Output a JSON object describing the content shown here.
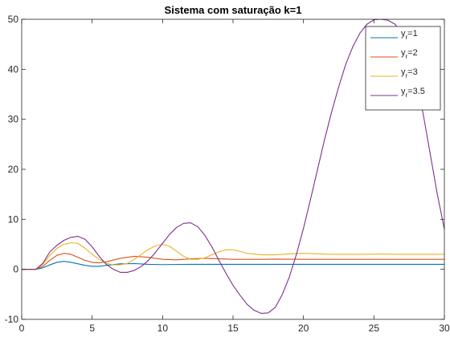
{
  "chart_data": {
    "type": "line",
    "title": "Sistema com saturação k=1",
    "xlabel": "",
    "ylabel": "",
    "xlim": [
      0,
      30
    ],
    "ylim": [
      -10,
      50
    ],
    "xticks": [
      0,
      5,
      10,
      15,
      20,
      25,
      30
    ],
    "yticks": [
      -10,
      0,
      10,
      20,
      30,
      40,
      50
    ],
    "grid": false,
    "legend_position": "top-right",
    "series": [
      {
        "name_main": "y",
        "name_sub": "r",
        "name_rest": "=1",
        "color": "#0072BD",
        "x": [
          0,
          1,
          1.5,
          2,
          2.5,
          3,
          3.5,
          4,
          4.5,
          5,
          5.5,
          6,
          7,
          8,
          9,
          10,
          12,
          15,
          20,
          25,
          30
        ],
        "y": [
          0,
          0,
          0.3,
          0.9,
          1.4,
          1.6,
          1.4,
          1.1,
          0.8,
          0.6,
          0.6,
          0.8,
          1.1,
          1.15,
          1.0,
          0.95,
          1.0,
          1.0,
          1.0,
          1.0,
          1.0
        ]
      },
      {
        "name_main": "y",
        "name_sub": "r",
        "name_rest": "=2",
        "color": "#D95319",
        "x": [
          0,
          1,
          1.5,
          2,
          2.5,
          3,
          3.5,
          4,
          4.5,
          5,
          5.5,
          6,
          7,
          8,
          9,
          10,
          11,
          12,
          13,
          14,
          15,
          16,
          17,
          18,
          20,
          25,
          30
        ],
        "y": [
          0,
          0,
          0.6,
          1.8,
          2.8,
          3.2,
          3.0,
          2.4,
          1.8,
          1.4,
          1.3,
          1.5,
          2.2,
          2.6,
          2.4,
          2.0,
          1.9,
          2.1,
          2.2,
          2.1,
          2.0,
          2.0,
          2.0,
          2.05,
          2.0,
          2.0,
          2.0
        ]
      },
      {
        "name_main": "y",
        "name_sub": "r",
        "name_rest": "=3",
        "color": "#EDB120",
        "x": [
          0,
          1,
          1.5,
          2,
          2.5,
          3,
          3.5,
          4,
          4.5,
          5,
          5.5,
          6,
          6.5,
          7,
          7.5,
          8,
          8.5,
          9,
          9.5,
          10,
          10.5,
          11,
          11.5,
          12,
          12.5,
          13,
          13.5,
          14,
          14.5,
          15,
          15.5,
          16,
          17,
          18,
          19,
          20,
          21,
          22,
          23,
          24,
          25,
          26,
          27,
          28,
          29,
          30
        ],
        "y": [
          0,
          0,
          1.0,
          2.8,
          4.2,
          5.0,
          5.3,
          5.2,
          4.2,
          3.0,
          2.0,
          1.2,
          0.9,
          0.9,
          1.2,
          2.0,
          3.0,
          4.0,
          4.7,
          5.0,
          4.6,
          3.6,
          2.6,
          2.0,
          2.0,
          2.3,
          2.9,
          3.5,
          3.9,
          3.9,
          3.6,
          3.2,
          2.9,
          2.9,
          3.1,
          3.2,
          3.1,
          3.0,
          3.0,
          3.0,
          3.05,
          3.05,
          3.0,
          3.0,
          3.0,
          3.0
        ]
      },
      {
        "name_main": "y",
        "name_sub": "r",
        "name_rest": "=3.5",
        "color": "#7E2F8E",
        "x": [
          0,
          1,
          1.5,
          2,
          2.5,
          3,
          3.5,
          4,
          4.5,
          5,
          5.5,
          6,
          6.5,
          7,
          7.5,
          8,
          8.5,
          9,
          9.5,
          10,
          10.5,
          11,
          11.5,
          12,
          12.5,
          13,
          13.5,
          14,
          14.5,
          15,
          15.5,
          16,
          16.5,
          17,
          17.5,
          18,
          18.5,
          19,
          19.5,
          20,
          20.5,
          21,
          21.5,
          22,
          22.5,
          23,
          23.5,
          24,
          24.5,
          25,
          25.5,
          26,
          26.5,
          27,
          27.5,
          28,
          28.5,
          29,
          29.5,
          30
        ],
        "y": [
          0,
          0,
          1.2,
          3.5,
          4.8,
          5.8,
          6.4,
          6.6,
          6.0,
          4.5,
          2.6,
          1.0,
          0.0,
          -0.6,
          -0.6,
          -0.2,
          0.6,
          1.8,
          3.4,
          5.2,
          7.0,
          8.4,
          9.2,
          9.3,
          8.5,
          6.8,
          4.5,
          1.8,
          -0.8,
          -3.2,
          -5.2,
          -7.0,
          -8.2,
          -8.8,
          -8.7,
          -7.6,
          -5.0,
          -1.5,
          3.0,
          8.2,
          14.0,
          20.0,
          26.0,
          31.5,
          36.5,
          41.0,
          44.5,
          47.2,
          49.0,
          49.9,
          50.0,
          49.8,
          49.0,
          47.0,
          43.5,
          38.0,
          31.0,
          23.0,
          15.0,
          8.0
        ]
      }
    ]
  }
}
